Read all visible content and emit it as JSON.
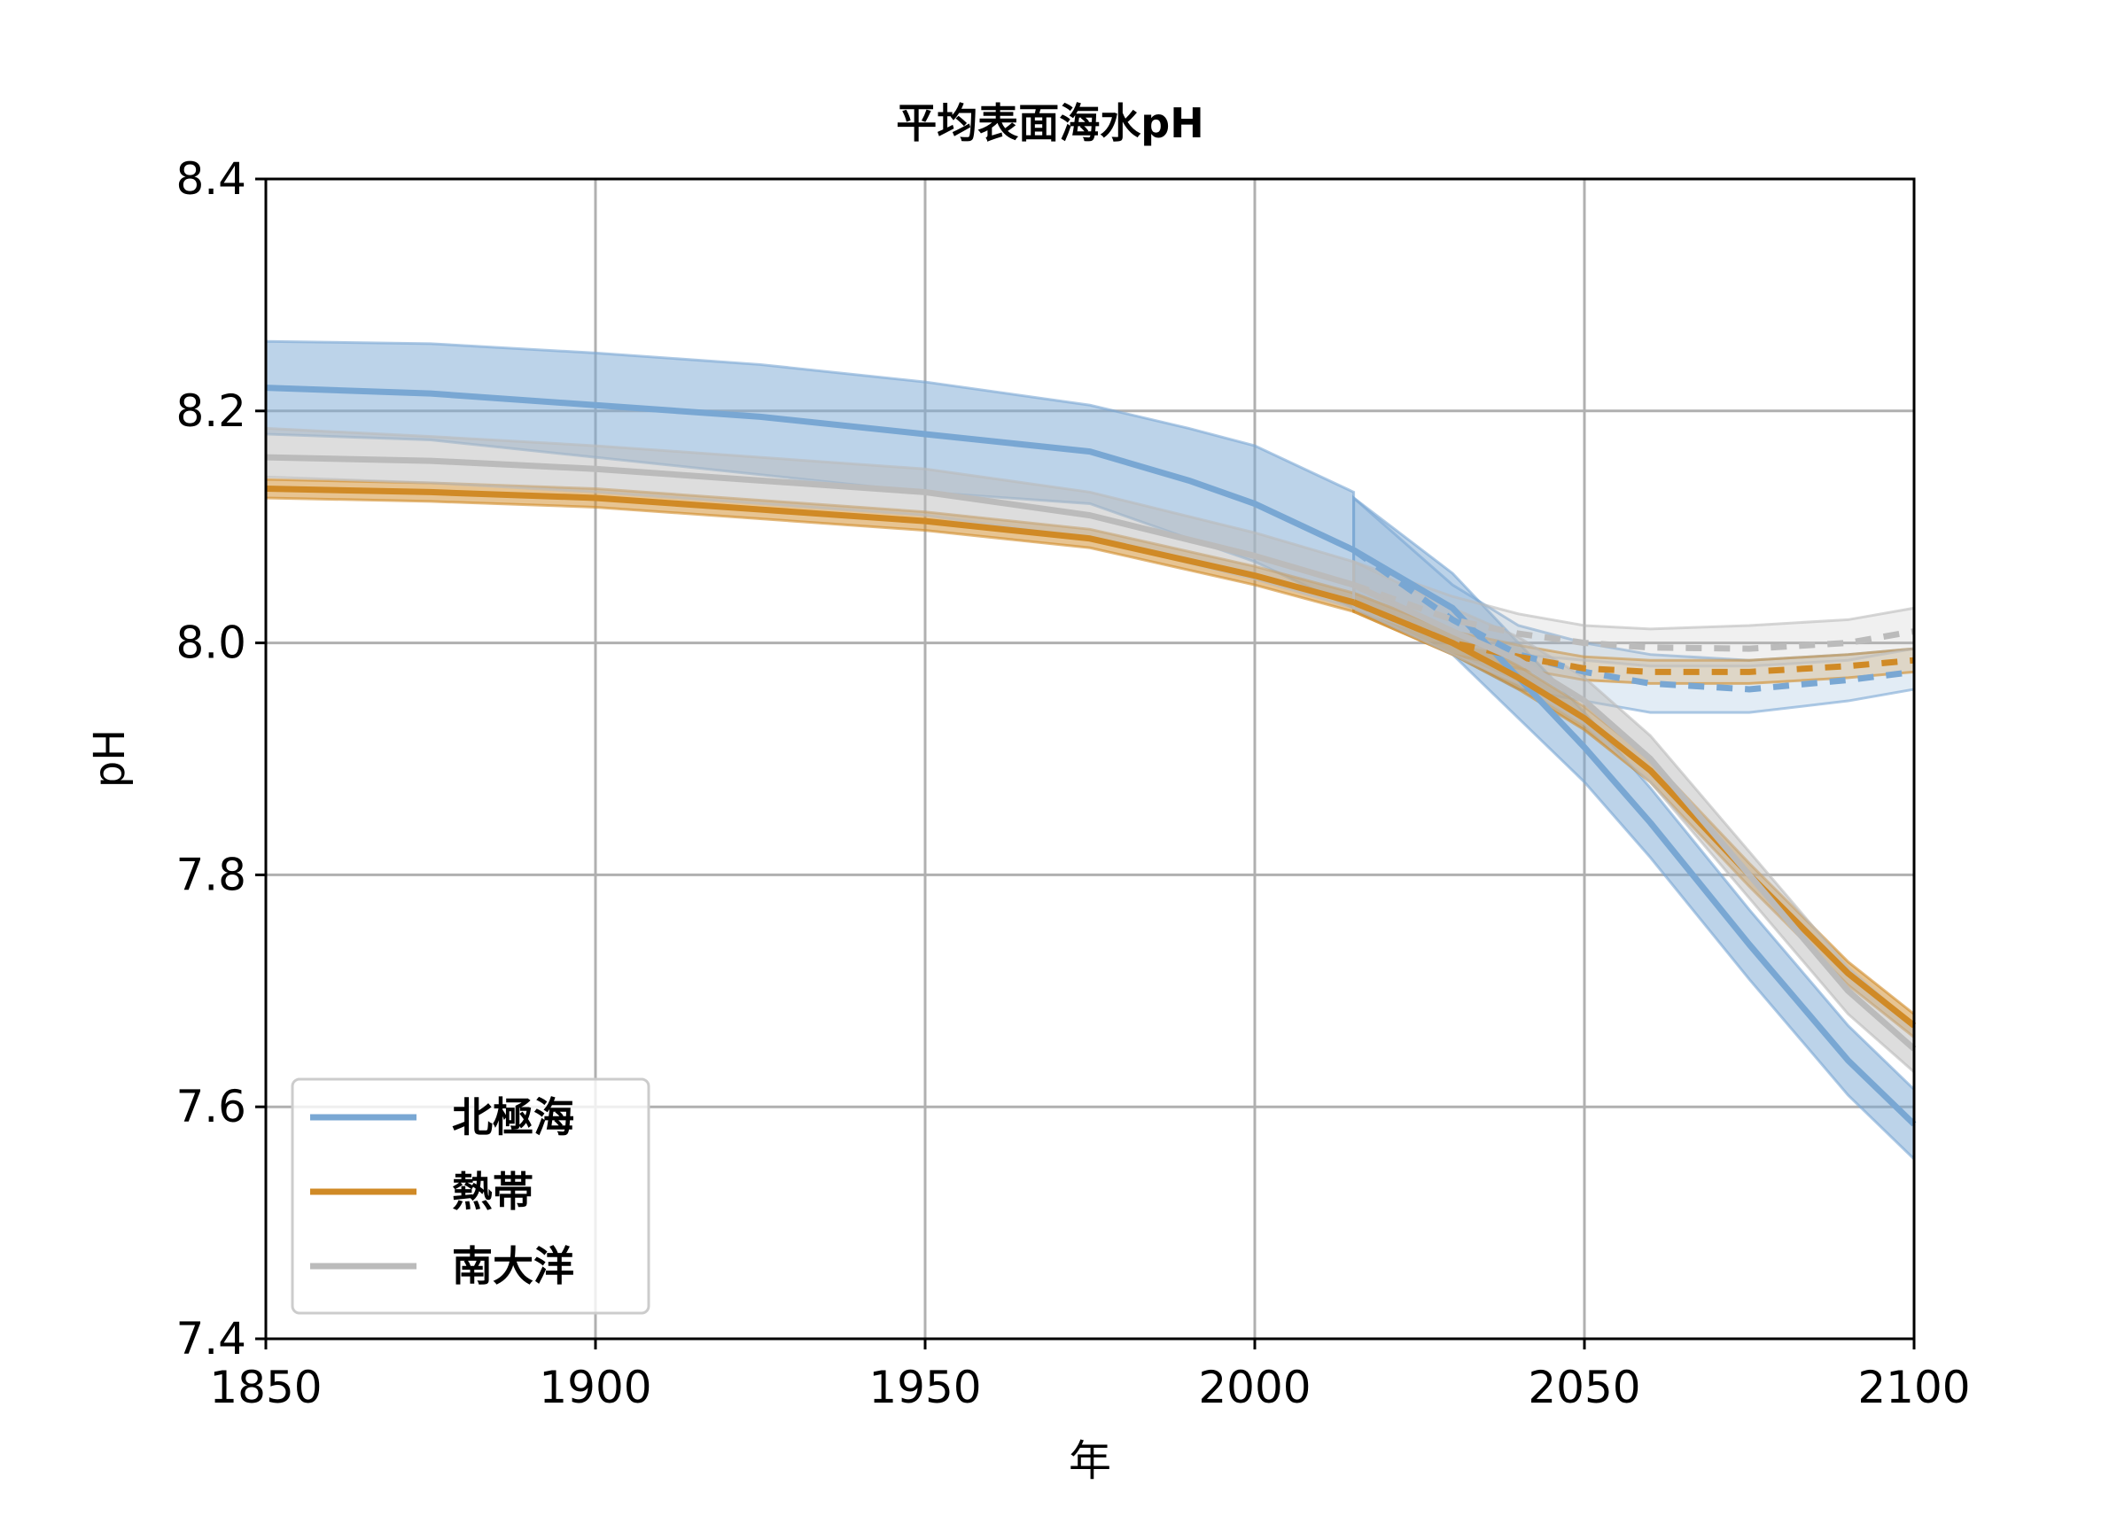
{
  "chart_data": {
    "type": "line",
    "title": "平均表面海水pH",
    "xlabel": "年",
    "ylabel": "pH",
    "xlim": [
      1850,
      2100
    ],
    "ylim": [
      7.4,
      8.4
    ],
    "xticks": [
      1850,
      1900,
      1950,
      2000,
      2050,
      2100
    ],
    "yticks": [
      7.4,
      7.6,
      7.8,
      8.0,
      8.2,
      8.4
    ],
    "ytick_labels": [
      "7.4",
      "7.6",
      "7.8",
      "8.0",
      "8.2",
      "8.4"
    ],
    "grid": true,
    "legend_position": "lower-left",
    "series": [
      {
        "name": "北極海",
        "color": "#79a7d3",
        "historical": {
          "x": [
            1850,
            1875,
            1900,
            1925,
            1950,
            1975,
            1990,
            2000,
            2015
          ],
          "y": [
            8.22,
            8.215,
            8.205,
            8.195,
            8.18,
            8.165,
            8.14,
            8.12,
            8.08
          ],
          "lower": [
            8.18,
            8.175,
            8.16,
            8.145,
            8.13,
            8.12,
            8.09,
            8.07,
            8.03
          ],
          "upper": [
            8.26,
            8.258,
            8.25,
            8.24,
            8.225,
            8.205,
            8.185,
            8.17,
            8.13
          ]
        },
        "high_scenario": {
          "x": [
            2015,
            2030,
            2040,
            2050,
            2060,
            2075,
            2090,
            2100
          ],
          "y": [
            8.08,
            8.03,
            7.97,
            7.91,
            7.845,
            7.74,
            7.64,
            7.585
          ],
          "lower": [
            8.03,
            7.99,
            7.935,
            7.88,
            7.815,
            7.71,
            7.61,
            7.555
          ],
          "upper": [
            8.125,
            8.06,
            8.0,
            7.94,
            7.875,
            7.77,
            7.67,
            7.615
          ]
        },
        "low_scenario": {
          "x": [
            2015,
            2030,
            2040,
            2050,
            2060,
            2075,
            2090,
            2100
          ],
          "y": [
            8.08,
            8.02,
            7.99,
            7.975,
            7.965,
            7.96,
            7.968,
            7.975
          ],
          "lower": [
            8.03,
            7.99,
            7.96,
            7.95,
            7.94,
            7.94,
            7.95,
            7.96
          ],
          "upper": [
            8.125,
            8.05,
            8.015,
            8.0,
            7.99,
            7.985,
            7.99,
            7.995
          ]
        }
      },
      {
        "name": "熱帯",
        "color": "#d08a26",
        "historical": {
          "x": [
            1850,
            1875,
            1900,
            1925,
            1950,
            1975,
            2000,
            2015
          ],
          "y": [
            8.133,
            8.13,
            8.125,
            8.115,
            8.105,
            8.09,
            8.058,
            8.035
          ],
          "lower": [
            8.125,
            8.122,
            8.117,
            8.107,
            8.097,
            8.082,
            8.05,
            8.027
          ],
          "upper": [
            8.141,
            8.138,
            8.133,
            8.123,
            8.113,
            8.098,
            8.066,
            8.043
          ]
        },
        "high_scenario": {
          "x": [
            2015,
            2030,
            2040,
            2050,
            2060,
            2075,
            2090,
            2100
          ],
          "y": [
            8.035,
            8.0,
            7.97,
            7.935,
            7.89,
            7.8,
            7.715,
            7.67
          ],
          "lower": [
            8.027,
            7.99,
            7.96,
            7.925,
            7.88,
            7.79,
            7.705,
            7.66
          ],
          "upper": [
            8.043,
            8.01,
            7.98,
            7.945,
            7.9,
            7.81,
            7.725,
            7.68
          ]
        },
        "low_scenario": {
          "x": [
            2015,
            2030,
            2040,
            2050,
            2060,
            2075,
            2090,
            2100
          ],
          "y": [
            8.035,
            8.0,
            7.988,
            7.978,
            7.975,
            7.975,
            7.98,
            7.985
          ],
          "lower": [
            8.027,
            7.99,
            7.978,
            7.968,
            7.965,
            7.965,
            7.97,
            7.975
          ],
          "upper": [
            8.043,
            8.01,
            7.998,
            7.988,
            7.985,
            7.985,
            7.99,
            7.995
          ]
        }
      },
      {
        "name": "南大洋",
        "color": "#bbbbbb",
        "historical": {
          "x": [
            1850,
            1875,
            1900,
            1925,
            1950,
            1975,
            2000,
            2015
          ],
          "y": [
            8.16,
            8.157,
            8.15,
            8.14,
            8.13,
            8.11,
            8.075,
            8.05
          ],
          "lower": [
            8.143,
            8.138,
            8.13,
            8.12,
            8.11,
            8.09,
            8.055,
            8.03
          ],
          "upper": [
            8.185,
            8.178,
            8.17,
            8.16,
            8.15,
            8.13,
            8.095,
            8.07
          ]
        },
        "high_scenario": {
          "x": [
            2015,
            2030,
            2040,
            2050,
            2060,
            2075,
            2090,
            2100
          ],
          "y": [
            8.05,
            8.01,
            7.985,
            7.95,
            7.9,
            7.8,
            7.7,
            7.65
          ],
          "lower": [
            8.03,
            7.99,
            7.965,
            7.93,
            7.88,
            7.78,
            7.68,
            7.63
          ],
          "upper": [
            8.07,
            8.03,
            8.005,
            7.97,
            7.92,
            7.82,
            7.72,
            7.67
          ]
        },
        "low_scenario": {
          "x": [
            2015,
            2030,
            2040,
            2050,
            2060,
            2075,
            2090,
            2100
          ],
          "y": [
            8.05,
            8.02,
            8.008,
            8.0,
            7.996,
            7.995,
            8.0,
            8.01
          ],
          "lower": [
            8.03,
            8.0,
            7.99,
            7.985,
            7.98,
            7.98,
            7.985,
            7.995
          ],
          "upper": [
            8.07,
            8.04,
            8.025,
            8.015,
            8.012,
            8.015,
            8.02,
            8.03
          ]
        }
      }
    ]
  }
}
